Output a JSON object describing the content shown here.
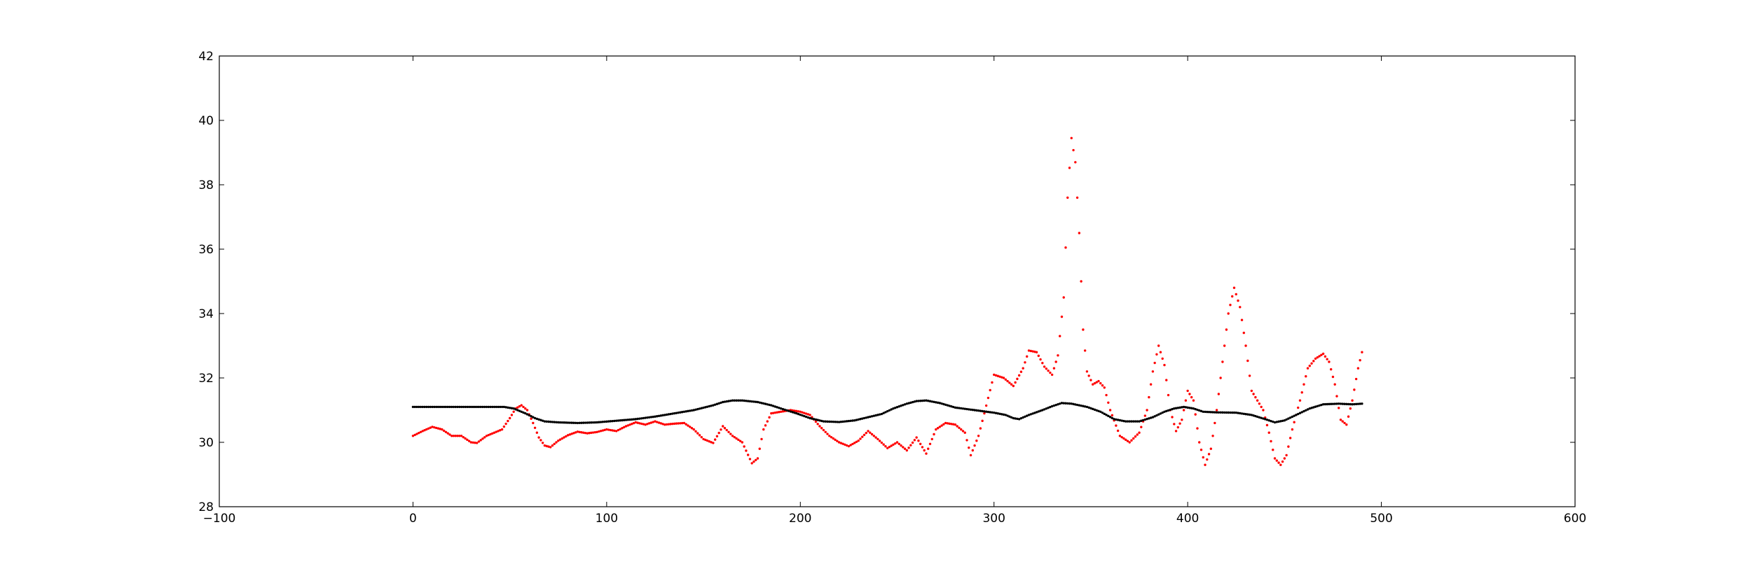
{
  "chart_data": {
    "type": "scatter",
    "title": "",
    "xlabel": "",
    "ylabel": "",
    "xlim": [
      -100,
      600
    ],
    "ylim": [
      28,
      42
    ],
    "x_ticks": [
      -100,
      0,
      100,
      200,
      300,
      400,
      500,
      600
    ],
    "x_tick_labels": [
      "−100",
      "0",
      "100",
      "200",
      "300",
      "400",
      "500",
      "600"
    ],
    "y_ticks": [
      28,
      30,
      32,
      34,
      36,
      38,
      40,
      42
    ],
    "y_tick_labels": [
      "28",
      "30",
      "32",
      "34",
      "36",
      "38",
      "40",
      "42"
    ],
    "grid": false,
    "legend": "none",
    "series": [
      {
        "color": "#ff0000",
        "marker": "dot",
        "points": [
          [
            0,
            30.2
          ],
          [
            5,
            30.35
          ],
          [
            10,
            30.48
          ],
          [
            15,
            30.4
          ],
          [
            20,
            30.2
          ],
          [
            25,
            30.2
          ],
          [
            30,
            30.0
          ],
          [
            33,
            29.98
          ],
          [
            38,
            30.2
          ],
          [
            42,
            30.3
          ],
          [
            46,
            30.4
          ],
          [
            50,
            30.75
          ],
          [
            53,
            31.05
          ],
          [
            56,
            31.15
          ],
          [
            59,
            31.0
          ],
          [
            62,
            30.6
          ],
          [
            65,
            30.15
          ],
          [
            68,
            29.9
          ],
          [
            71,
            29.85
          ],
          [
            75,
            30.05
          ],
          [
            80,
            30.22
          ],
          [
            85,
            30.33
          ],
          [
            90,
            30.28
          ],
          [
            95,
            30.32
          ],
          [
            100,
            30.4
          ],
          [
            105,
            30.35
          ],
          [
            110,
            30.5
          ],
          [
            115,
            30.62
          ],
          [
            120,
            30.55
          ],
          [
            125,
            30.65
          ],
          [
            130,
            30.55
          ],
          [
            135,
            30.58
          ],
          [
            140,
            30.6
          ],
          [
            145,
            30.4
          ],
          [
            150,
            30.1
          ],
          [
            155,
            29.98
          ],
          [
            160,
            30.5
          ],
          [
            165,
            30.2
          ],
          [
            170,
            30.0
          ],
          [
            175,
            29.35
          ],
          [
            178,
            29.5
          ],
          [
            181,
            30.4
          ],
          [
            185,
            30.9
          ],
          [
            190,
            30.95
          ],
          [
            195,
            31.0
          ],
          [
            200,
            30.95
          ],
          [
            205,
            30.85
          ],
          [
            210,
            30.5
          ],
          [
            215,
            30.2
          ],
          [
            220,
            30.0
          ],
          [
            225,
            29.88
          ],
          [
            230,
            30.05
          ],
          [
            235,
            30.35
          ],
          [
            240,
            30.1
          ],
          [
            245,
            29.82
          ],
          [
            250,
            30.0
          ],
          [
            255,
            29.75
          ],
          [
            260,
            30.15
          ],
          [
            265,
            29.65
          ],
          [
            270,
            30.4
          ],
          [
            275,
            30.6
          ],
          [
            280,
            30.55
          ],
          [
            285,
            30.3
          ],
          [
            288,
            29.6
          ],
          [
            292,
            30.2
          ],
          [
            295,
            30.9
          ],
          [
            300,
            32.1
          ],
          [
            305,
            32.0
          ],
          [
            310,
            31.75
          ],
          [
            315,
            32.3
          ],
          [
            318,
            32.85
          ],
          [
            322,
            32.8
          ],
          [
            326,
            32.35
          ],
          [
            330,
            32.1
          ],
          [
            333,
            32.7
          ],
          [
            336,
            34.5
          ],
          [
            338,
            37.6
          ],
          [
            340,
            39.45
          ],
          [
            342,
            38.7
          ],
          [
            344,
            36.5
          ],
          [
            346,
            33.5
          ],
          [
            348,
            32.2
          ],
          [
            351,
            31.8
          ],
          [
            354,
            31.9
          ],
          [
            357,
            31.7
          ],
          [
            360,
            31.0
          ],
          [
            365,
            30.2
          ],
          [
            370,
            30.0
          ],
          [
            375,
            30.3
          ],
          [
            379,
            31.0
          ],
          [
            382,
            32.2
          ],
          [
            385,
            33.0
          ],
          [
            388,
            32.4
          ],
          [
            391,
            31.0
          ],
          [
            394,
            30.35
          ],
          [
            397,
            30.7
          ],
          [
            400,
            31.6
          ],
          [
            403,
            31.3
          ],
          [
            406,
            30.0
          ],
          [
            409,
            29.3
          ],
          [
            412,
            29.8
          ],
          [
            415,
            31.0
          ],
          [
            418,
            32.5
          ],
          [
            421,
            34.0
          ],
          [
            424,
            34.8
          ],
          [
            427,
            34.2
          ],
          [
            430,
            33.0
          ],
          [
            433,
            31.6
          ],
          [
            436,
            31.3
          ],
          [
            439,
            31.0
          ],
          [
            442,
            30.3
          ],
          [
            445,
            29.5
          ],
          [
            448,
            29.3
          ],
          [
            451,
            29.6
          ],
          [
            454,
            30.4
          ],
          [
            458,
            31.3
          ],
          [
            462,
            32.3
          ],
          [
            466,
            32.6
          ],
          [
            470,
            32.75
          ],
          [
            473,
            32.5
          ],
          [
            476,
            31.8
          ],
          [
            479,
            30.7
          ],
          [
            482,
            30.55
          ],
          [
            485,
            31.3
          ],
          [
            488,
            32.3
          ],
          [
            490,
            32.8
          ]
        ]
      },
      {
        "color": "#000000",
        "marker": "dot",
        "points": [
          [
            0,
            31.1
          ],
          [
            10,
            31.1
          ],
          [
            20,
            31.1
          ],
          [
            30,
            31.1
          ],
          [
            40,
            31.1
          ],
          [
            47,
            31.1
          ],
          [
            52,
            31.05
          ],
          [
            58,
            30.9
          ],
          [
            63,
            30.75
          ],
          [
            68,
            30.65
          ],
          [
            75,
            30.62
          ],
          [
            85,
            30.6
          ],
          [
            95,
            30.62
          ],
          [
            105,
            30.67
          ],
          [
            115,
            30.72
          ],
          [
            125,
            30.8
          ],
          [
            135,
            30.9
          ],
          [
            145,
            31.0
          ],
          [
            155,
            31.15
          ],
          [
            160,
            31.25
          ],
          [
            165,
            31.3
          ],
          [
            170,
            31.3
          ],
          [
            178,
            31.25
          ],
          [
            185,
            31.15
          ],
          [
            190,
            31.05
          ],
          [
            198,
            30.9
          ],
          [
            205,
            30.75
          ],
          [
            212,
            30.65
          ],
          [
            220,
            30.63
          ],
          [
            228,
            30.68
          ],
          [
            235,
            30.78
          ],
          [
            242,
            30.88
          ],
          [
            248,
            31.05
          ],
          [
            255,
            31.2
          ],
          [
            260,
            31.28
          ],
          [
            265,
            31.3
          ],
          [
            272,
            31.22
          ],
          [
            280,
            31.08
          ],
          [
            290,
            31.0
          ],
          [
            300,
            30.92
          ],
          [
            306,
            30.85
          ],
          [
            310,
            30.75
          ],
          [
            313,
            30.72
          ],
          [
            318,
            30.85
          ],
          [
            325,
            31.0
          ],
          [
            330,
            31.12
          ],
          [
            335,
            31.22
          ],
          [
            340,
            31.2
          ],
          [
            348,
            31.1
          ],
          [
            355,
            30.95
          ],
          [
            362,
            30.72
          ],
          [
            368,
            30.65
          ],
          [
            375,
            30.65
          ],
          [
            382,
            30.78
          ],
          [
            388,
            30.95
          ],
          [
            393,
            31.05
          ],
          [
            398,
            31.1
          ],
          [
            403,
            31.05
          ],
          [
            408,
            30.95
          ],
          [
            415,
            30.93
          ],
          [
            425,
            30.92
          ],
          [
            433,
            30.85
          ],
          [
            440,
            30.72
          ],
          [
            445,
            30.62
          ],
          [
            450,
            30.68
          ],
          [
            457,
            30.88
          ],
          [
            463,
            31.05
          ],
          [
            470,
            31.18
          ],
          [
            478,
            31.2
          ],
          [
            485,
            31.18
          ],
          [
            490,
            31.2
          ]
        ]
      }
    ]
  }
}
